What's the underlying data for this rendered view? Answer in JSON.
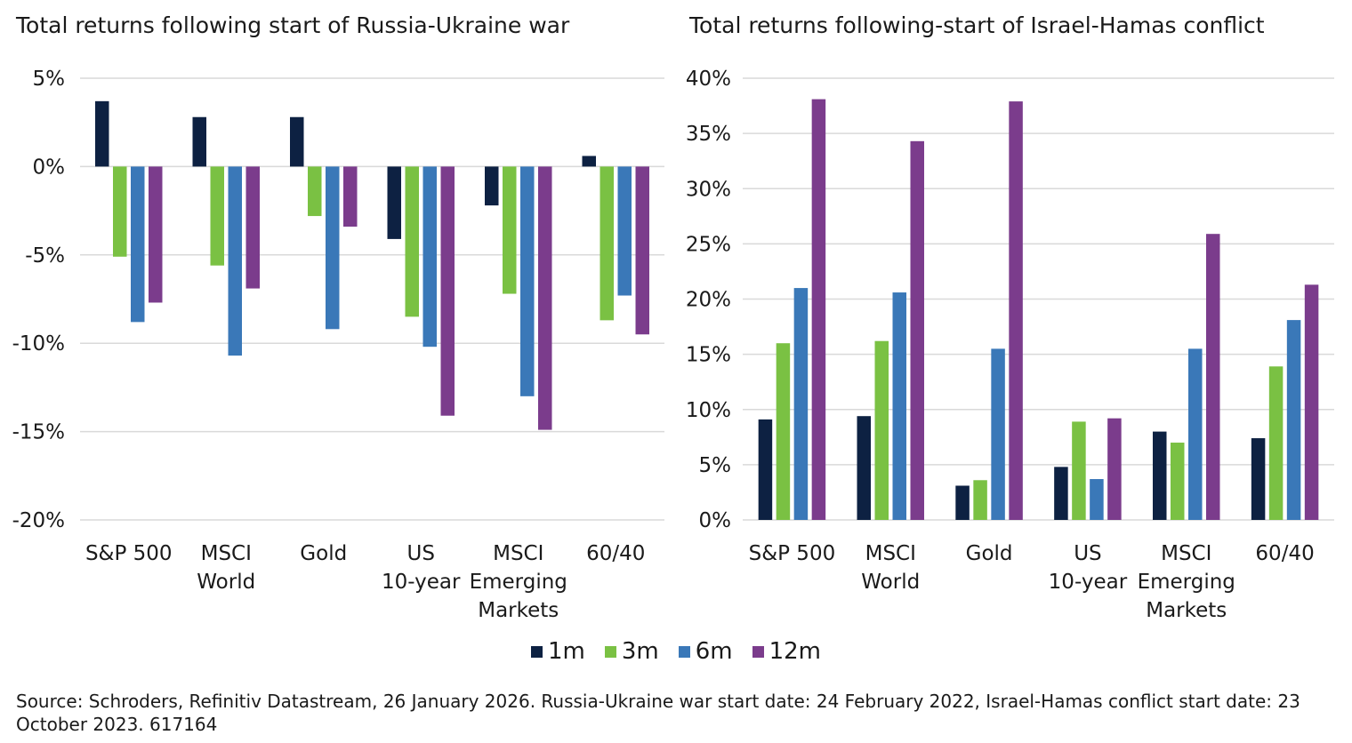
{
  "chart_data": [
    {
      "type": "bar",
      "title": "Total returns following start of Russia-Ukraine war",
      "categories": [
        "S&P 500",
        "MSCI World",
        "Gold",
        "US 10-year",
        "MSCI Emerging Markets",
        "60/40"
      ],
      "category_lines": [
        [
          "S&P 500"
        ],
        [
          "MSCI",
          "World"
        ],
        [
          "Gold"
        ],
        [
          "US",
          "10-year"
        ],
        [
          "MSCI",
          "Emerging",
          "Markets"
        ],
        [
          "60/40"
        ]
      ],
      "series": [
        {
          "name": "1m",
          "values": [
            3.7,
            2.8,
            2.8,
            -4.1,
            -2.2,
            0.6
          ]
        },
        {
          "name": "3m",
          "values": [
            -5.1,
            -5.6,
            -2.8,
            -8.5,
            -7.2,
            -8.7
          ]
        },
        {
          "name": "6m",
          "values": [
            -8.8,
            -10.7,
            -9.2,
            -10.2,
            -13.0,
            -7.3
          ]
        },
        {
          "name": "12m",
          "values": [
            -7.7,
            -6.9,
            -3.4,
            -14.1,
            -14.9,
            -9.5
          ]
        }
      ],
      "ylim": [
        -20,
        5
      ],
      "yticks": [
        5,
        0,
        -5,
        -10,
        -15,
        -20
      ],
      "ytick_labels": [
        "5%",
        "0%",
        "-5%",
        "-10%",
        "-15%",
        "-20%"
      ],
      "xlabel": "",
      "ylabel": ""
    },
    {
      "type": "bar",
      "title": "Total returns following-start of Israel-Hamas conflict",
      "categories": [
        "S&P 500",
        "MSCI World",
        "Gold",
        "US 10-year",
        "MSCI Emerging Markets",
        "60/40"
      ],
      "category_lines": [
        [
          "S&P 500"
        ],
        [
          "MSCI",
          "World"
        ],
        [
          "Gold"
        ],
        [
          "US",
          "10-year"
        ],
        [
          "MSCI",
          "Emerging",
          "Markets"
        ],
        [
          "60/40"
        ]
      ],
      "series": [
        {
          "name": "1m",
          "values": [
            9.1,
            9.4,
            3.1,
            4.8,
            8.0,
            7.4
          ]
        },
        {
          "name": "3m",
          "values": [
            16.0,
            16.2,
            3.6,
            8.9,
            7.0,
            13.9
          ]
        },
        {
          "name": "6m",
          "values": [
            21.0,
            20.6,
            15.5,
            3.7,
            15.5,
            18.1
          ]
        },
        {
          "name": "12m",
          "values": [
            38.1,
            34.3,
            37.9,
            9.2,
            25.9,
            21.3
          ]
        }
      ],
      "ylim": [
        0,
        40
      ],
      "yticks": [
        40,
        35,
        30,
        25,
        20,
        15,
        10,
        5,
        0
      ],
      "ytick_labels": [
        "40%",
        "35%",
        "30%",
        "25%",
        "20%",
        "15%",
        "10%",
        "5%",
        "0%"
      ],
      "xlabel": "",
      "ylabel": ""
    }
  ],
  "colors": {
    "1m": "#0d2142",
    "3m": "#7ac143",
    "6m": "#3a78b8",
    "12m": "#7b3c8c"
  },
  "legend": [
    {
      "key": "1m",
      "label": "1m"
    },
    {
      "key": "3m",
      "label": "3m"
    },
    {
      "key": "6m",
      "label": "6m"
    },
    {
      "key": "12m",
      "label": "12m"
    }
  ],
  "source": "Source: Schroders, Refinitiv Datastream, 26 January 2026. Russia-Ukraine war start date: 24 February 2022, Israel-Hamas conflict start date: 23 October 2023. 617164"
}
